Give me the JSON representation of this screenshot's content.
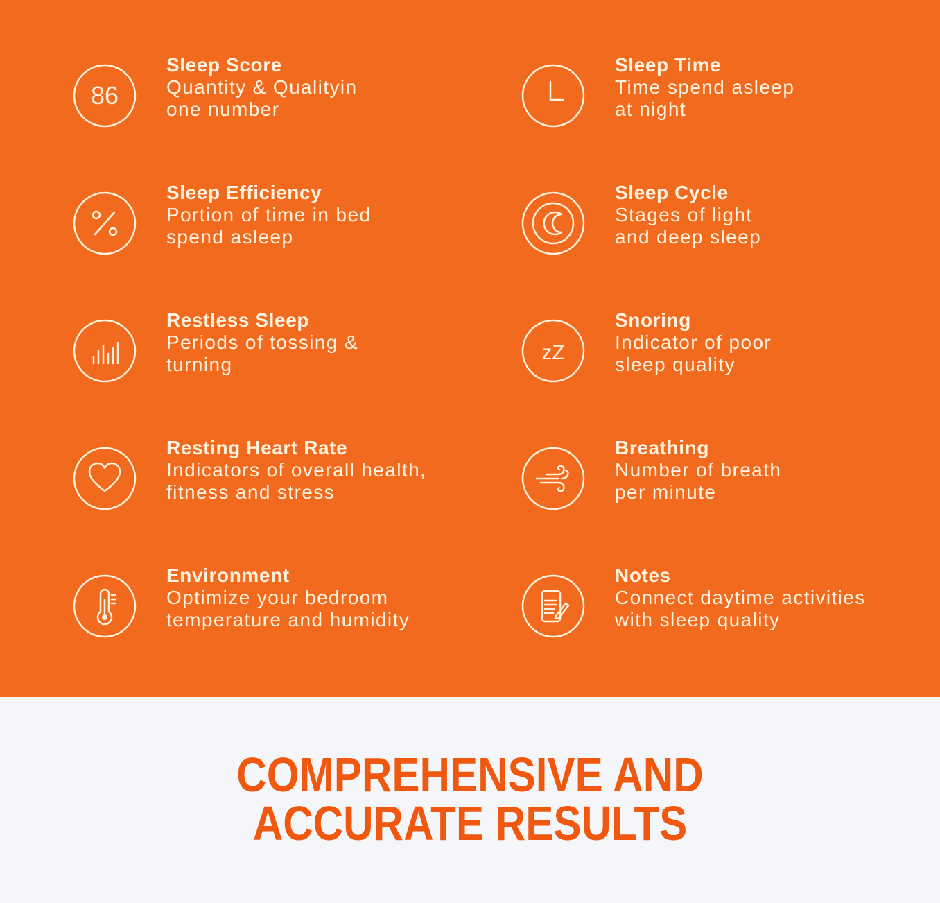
{
  "colors": {
    "background": "#f26a1d",
    "icon_text": "#fff3e0",
    "headline": "#f0580f",
    "footer_bg": "#f5f6fa"
  },
  "features": [
    {
      "icon": "score-86-icon",
      "icon_text": "86",
      "title": "Sleep Score",
      "desc": [
        "Quantity & Qualityin",
        "one number"
      ]
    },
    {
      "icon": "clock-icon",
      "title": "Sleep Time",
      "desc": [
        "Time spend asleep",
        "at night"
      ]
    },
    {
      "icon": "percent-icon",
      "title": "Sleep Efficiency",
      "desc": [
        "Portion of time in bed",
        "spend asleep"
      ]
    },
    {
      "icon": "moon-icon",
      "title": "Sleep Cycle",
      "desc": [
        "Stages of light",
        "and deep sleep"
      ]
    },
    {
      "icon": "bars-icon",
      "title": "Restless Sleep",
      "desc": [
        "Periods of tossing &",
        "turning"
      ]
    },
    {
      "icon": "zz-icon",
      "icon_text": "zZ",
      "title": "Snoring",
      "desc": [
        "Indicator of poor",
        "sleep quality"
      ]
    },
    {
      "icon": "heart-icon",
      "title": "Resting Heart Rate",
      "desc": [
        "Indicators of overall health,",
        "fitness and stress"
      ]
    },
    {
      "icon": "wind-icon",
      "title": "Breathing",
      "desc": [
        "Number of breath",
        "per minute"
      ]
    },
    {
      "icon": "thermometer-icon",
      "title": "Environment",
      "desc": [
        "Optimize your bedroom",
        "temperature and humidity"
      ]
    },
    {
      "icon": "notes-icon",
      "title": "Notes",
      "desc": [
        "Connect daytime activities",
        "with sleep quality"
      ]
    }
  ],
  "headline": [
    "COMPREHENSIVE AND",
    "ACCURATE RESULTS"
  ]
}
